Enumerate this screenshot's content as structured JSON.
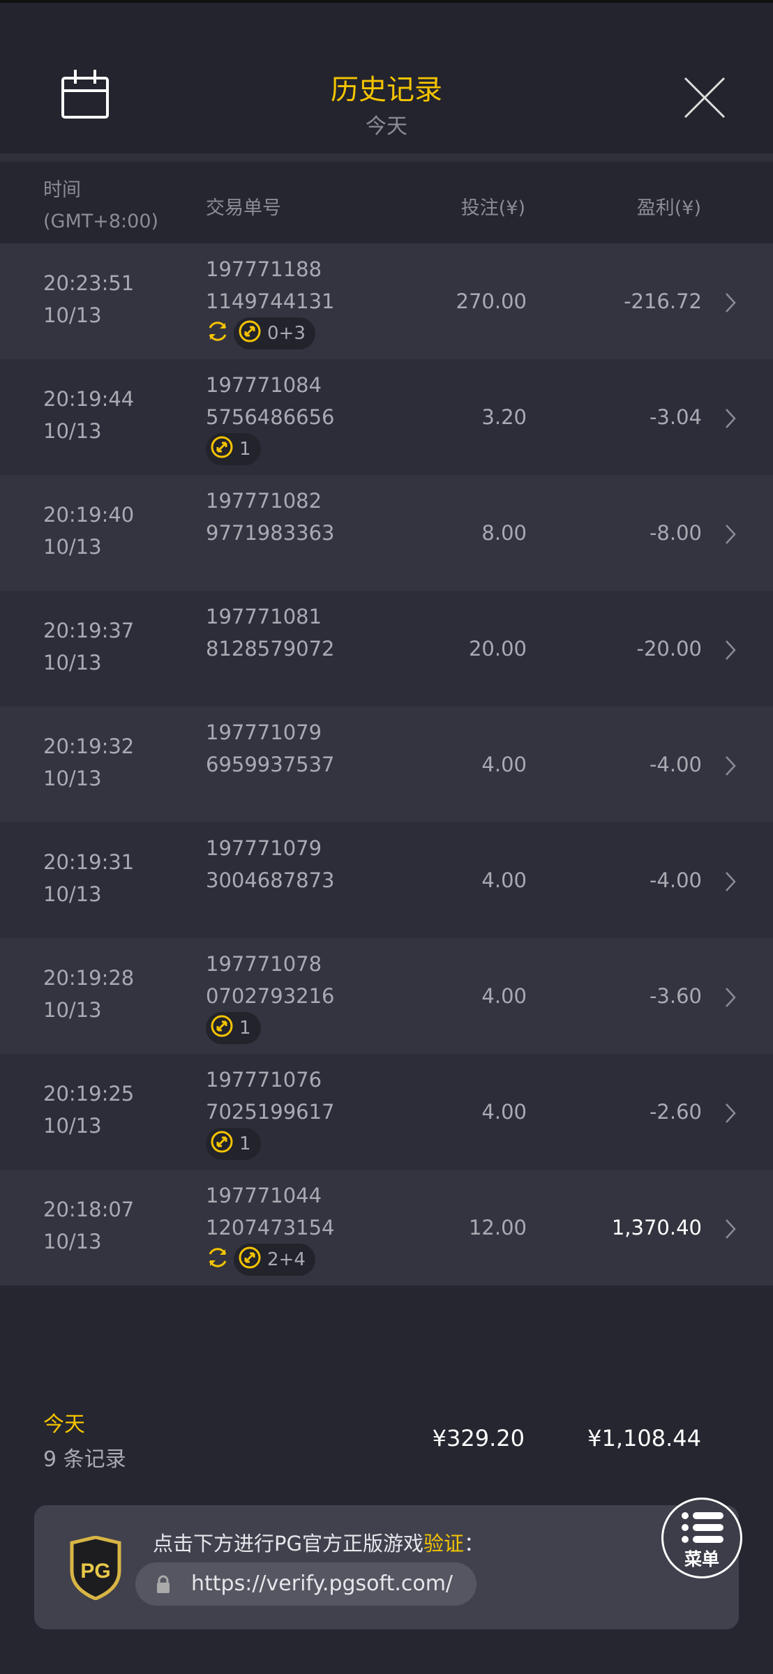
{
  "header": {
    "title": "历史记录",
    "subtitle": "今天",
    "calendar_icon": "calendar-icon",
    "close_icon": "close-icon"
  },
  "colors": {
    "accent": "#f5c400",
    "background": "#25262f"
  },
  "columns": {
    "time": "时间",
    "timezone": "(GMT+8:00)",
    "txn": "交易单号",
    "bet": "投注(¥)",
    "profit": "盈利(¥)"
  },
  "rows": [
    {
      "time": "20:23:51",
      "date": "10/13",
      "id1": "197771188",
      "id2": "1149744131",
      "bet": "270.00",
      "profit": "-216.72",
      "respin": true,
      "spins": "0+3"
    },
    {
      "time": "20:19:44",
      "date": "10/13",
      "id1": "197771084",
      "id2": "5756486656",
      "bet": "3.20",
      "profit": "-3.04",
      "respin": false,
      "spins": "1"
    },
    {
      "time": "20:19:40",
      "date": "10/13",
      "id1": "197771082",
      "id2": "9771983363",
      "bet": "8.00",
      "profit": "-8.00",
      "respin": false,
      "spins": null
    },
    {
      "time": "20:19:37",
      "date": "10/13",
      "id1": "197771081",
      "id2": "8128579072",
      "bet": "20.00",
      "profit": "-20.00",
      "respin": false,
      "spins": null
    },
    {
      "time": "20:19:32",
      "date": "10/13",
      "id1": "197771079",
      "id2": "6959937537",
      "bet": "4.00",
      "profit": "-4.00",
      "respin": false,
      "spins": null
    },
    {
      "time": "20:19:31",
      "date": "10/13",
      "id1": "197771079",
      "id2": "3004687873",
      "bet": "4.00",
      "profit": "-4.00",
      "respin": false,
      "spins": null
    },
    {
      "time": "20:19:28",
      "date": "10/13",
      "id1": "197771078",
      "id2": "0702793216",
      "bet": "4.00",
      "profit": "-3.60",
      "respin": false,
      "spins": "1"
    },
    {
      "time": "20:19:25",
      "date": "10/13",
      "id1": "197771076",
      "id2": "7025199617",
      "bet": "4.00",
      "profit": "-2.60",
      "respin": false,
      "spins": "1"
    },
    {
      "time": "20:18:07",
      "date": "10/13",
      "id1": "197771044",
      "id2": "1207473154",
      "bet": "12.00",
      "profit": "1,370.40",
      "respin": true,
      "spins": "2+4"
    }
  ],
  "footer": {
    "period": "今天",
    "count": "9 条记录",
    "total_bet": "¥329.20",
    "total_profit": "¥1,108.44"
  },
  "verify": {
    "text": "点击下方进行PG官方正版游戏",
    "highlight": "验证",
    "colon": "：",
    "url": "https://verify.pgsoft.com/",
    "logo": "PG"
  },
  "menu": {
    "label": "菜单"
  }
}
